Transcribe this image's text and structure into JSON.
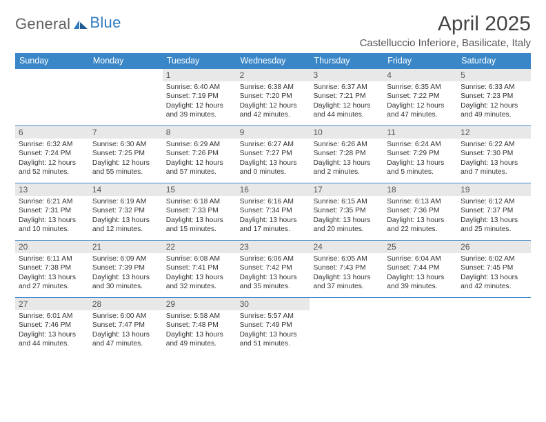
{
  "logo": {
    "text_general": "General",
    "text_blue": "Blue"
  },
  "title": "April 2025",
  "location": "Castelluccio Inferiore, Basilicate, Italy",
  "colors": {
    "header_bg": "#3a87c8",
    "header_text": "#ffffff",
    "daynum_bg": "#e8e8e8",
    "rule": "#3a87c8",
    "body_text": "#333333",
    "logo_gray": "#606060",
    "logo_blue": "#2f7bbf"
  },
  "day_headers": [
    "Sunday",
    "Monday",
    "Tuesday",
    "Wednesday",
    "Thursday",
    "Friday",
    "Saturday"
  ],
  "weeks": [
    [
      {
        "n": "",
        "empty": true
      },
      {
        "n": "",
        "empty": true
      },
      {
        "n": "1",
        "sunrise": "6:40 AM",
        "sunset": "7:19 PM",
        "daylight": "12 hours and 39 minutes."
      },
      {
        "n": "2",
        "sunrise": "6:38 AM",
        "sunset": "7:20 PM",
        "daylight": "12 hours and 42 minutes."
      },
      {
        "n": "3",
        "sunrise": "6:37 AM",
        "sunset": "7:21 PM",
        "daylight": "12 hours and 44 minutes."
      },
      {
        "n": "4",
        "sunrise": "6:35 AM",
        "sunset": "7:22 PM",
        "daylight": "12 hours and 47 minutes."
      },
      {
        "n": "5",
        "sunrise": "6:33 AM",
        "sunset": "7:23 PM",
        "daylight": "12 hours and 49 minutes."
      }
    ],
    [
      {
        "n": "6",
        "sunrise": "6:32 AM",
        "sunset": "7:24 PM",
        "daylight": "12 hours and 52 minutes."
      },
      {
        "n": "7",
        "sunrise": "6:30 AM",
        "sunset": "7:25 PM",
        "daylight": "12 hours and 55 minutes."
      },
      {
        "n": "8",
        "sunrise": "6:29 AM",
        "sunset": "7:26 PM",
        "daylight": "12 hours and 57 minutes."
      },
      {
        "n": "9",
        "sunrise": "6:27 AM",
        "sunset": "7:27 PM",
        "daylight": "13 hours and 0 minutes."
      },
      {
        "n": "10",
        "sunrise": "6:26 AM",
        "sunset": "7:28 PM",
        "daylight": "13 hours and 2 minutes."
      },
      {
        "n": "11",
        "sunrise": "6:24 AM",
        "sunset": "7:29 PM",
        "daylight": "13 hours and 5 minutes."
      },
      {
        "n": "12",
        "sunrise": "6:22 AM",
        "sunset": "7:30 PM",
        "daylight": "13 hours and 7 minutes."
      }
    ],
    [
      {
        "n": "13",
        "sunrise": "6:21 AM",
        "sunset": "7:31 PM",
        "daylight": "13 hours and 10 minutes."
      },
      {
        "n": "14",
        "sunrise": "6:19 AM",
        "sunset": "7:32 PM",
        "daylight": "13 hours and 12 minutes."
      },
      {
        "n": "15",
        "sunrise": "6:18 AM",
        "sunset": "7:33 PM",
        "daylight": "13 hours and 15 minutes."
      },
      {
        "n": "16",
        "sunrise": "6:16 AM",
        "sunset": "7:34 PM",
        "daylight": "13 hours and 17 minutes."
      },
      {
        "n": "17",
        "sunrise": "6:15 AM",
        "sunset": "7:35 PM",
        "daylight": "13 hours and 20 minutes."
      },
      {
        "n": "18",
        "sunrise": "6:13 AM",
        "sunset": "7:36 PM",
        "daylight": "13 hours and 22 minutes."
      },
      {
        "n": "19",
        "sunrise": "6:12 AM",
        "sunset": "7:37 PM",
        "daylight": "13 hours and 25 minutes."
      }
    ],
    [
      {
        "n": "20",
        "sunrise": "6:11 AM",
        "sunset": "7:38 PM",
        "daylight": "13 hours and 27 minutes."
      },
      {
        "n": "21",
        "sunrise": "6:09 AM",
        "sunset": "7:39 PM",
        "daylight": "13 hours and 30 minutes."
      },
      {
        "n": "22",
        "sunrise": "6:08 AM",
        "sunset": "7:41 PM",
        "daylight": "13 hours and 32 minutes."
      },
      {
        "n": "23",
        "sunrise": "6:06 AM",
        "sunset": "7:42 PM",
        "daylight": "13 hours and 35 minutes."
      },
      {
        "n": "24",
        "sunrise": "6:05 AM",
        "sunset": "7:43 PM",
        "daylight": "13 hours and 37 minutes."
      },
      {
        "n": "25",
        "sunrise": "6:04 AM",
        "sunset": "7:44 PM",
        "daylight": "13 hours and 39 minutes."
      },
      {
        "n": "26",
        "sunrise": "6:02 AM",
        "sunset": "7:45 PM",
        "daylight": "13 hours and 42 minutes."
      }
    ],
    [
      {
        "n": "27",
        "sunrise": "6:01 AM",
        "sunset": "7:46 PM",
        "daylight": "13 hours and 44 minutes."
      },
      {
        "n": "28",
        "sunrise": "6:00 AM",
        "sunset": "7:47 PM",
        "daylight": "13 hours and 47 minutes."
      },
      {
        "n": "29",
        "sunrise": "5:58 AM",
        "sunset": "7:48 PM",
        "daylight": "13 hours and 49 minutes."
      },
      {
        "n": "30",
        "sunrise": "5:57 AM",
        "sunset": "7:49 PM",
        "daylight": "13 hours and 51 minutes."
      },
      {
        "n": "",
        "empty": true
      },
      {
        "n": "",
        "empty": true
      },
      {
        "n": "",
        "empty": true
      }
    ]
  ],
  "labels": {
    "sunrise_prefix": "Sunrise: ",
    "sunset_prefix": "Sunset: ",
    "daylight_prefix": "Daylight: "
  }
}
